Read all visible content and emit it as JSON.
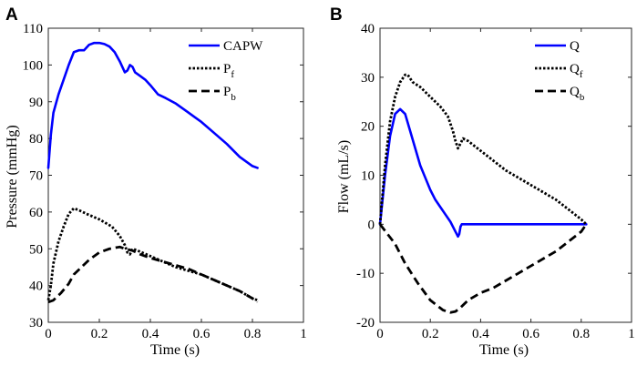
{
  "chart_data": [
    {
      "type": "line",
      "panel_label": "A",
      "xlabel": "Time (s)",
      "ylabel": "Pressure (mmHg)",
      "xlim": [
        0,
        1
      ],
      "ylim": [
        30,
        110
      ],
      "xticks": [
        0,
        0.2,
        0.4,
        0.6,
        0.8,
        1
      ],
      "xtick_labels": [
        "0",
        "0.2",
        "0.4",
        "0.6",
        "0.8",
        "1"
      ],
      "yticks": [
        30,
        40,
        50,
        60,
        70,
        80,
        90,
        100,
        110
      ],
      "ytick_labels": [
        "30",
        "40",
        "50",
        "60",
        "70",
        "80",
        "90",
        "100",
        "110"
      ],
      "legend_position": "top-right",
      "series": [
        {
          "name": "CAPW",
          "legend_main": "CAPW",
          "legend_sub": "",
          "color": "#0000ff",
          "style": "solid",
          "x": [
            0.0,
            0.01,
            0.02,
            0.04,
            0.06,
            0.08,
            0.1,
            0.12,
            0.14,
            0.16,
            0.18,
            0.2,
            0.22,
            0.24,
            0.26,
            0.28,
            0.3,
            0.31,
            0.32,
            0.33,
            0.34,
            0.36,
            0.38,
            0.4,
            0.43,
            0.46,
            0.5,
            0.55,
            0.6,
            0.65,
            0.7,
            0.75,
            0.8,
            0.82
          ],
          "y": [
            72,
            81,
            87,
            92,
            96,
            100,
            103.5,
            104,
            104,
            105.5,
            106,
            106,
            105.7,
            105,
            103.5,
            101,
            98,
            98.5,
            100,
            99.5,
            98,
            97,
            96,
            94.5,
            92,
            91,
            89.5,
            87,
            84.5,
            81.5,
            78.5,
            75,
            72.5,
            72
          ]
        },
        {
          "name": "Pf",
          "legend_main": "P",
          "legend_sub": "f",
          "color": "#000000",
          "style": "dotted",
          "x": [
            0.0,
            0.01,
            0.02,
            0.04,
            0.06,
            0.08,
            0.1,
            0.12,
            0.15,
            0.2,
            0.25,
            0.28,
            0.3,
            0.31,
            0.32,
            0.33,
            0.35,
            0.4,
            0.45,
            0.5,
            0.55,
            0.6,
            0.65,
            0.7,
            0.75,
            0.8,
            0.82
          ],
          "y": [
            36,
            40,
            46,
            52,
            56,
            59.5,
            61,
            60.5,
            59.5,
            58,
            56,
            53.5,
            51,
            49,
            48.5,
            50,
            49.5,
            48,
            46.5,
            45,
            44,
            43,
            41.5,
            40,
            38.5,
            36.5,
            36
          ]
        },
        {
          "name": "Pb",
          "legend_main": "P",
          "legend_sub": "b",
          "color": "#000000",
          "style": "dashed",
          "x": [
            0.0,
            0.02,
            0.05,
            0.08,
            0.1,
            0.13,
            0.16,
            0.2,
            0.24,
            0.28,
            0.3,
            0.33,
            0.36,
            0.4,
            0.45,
            0.5,
            0.55,
            0.6,
            0.65,
            0.7,
            0.75,
            0.8,
            0.82
          ],
          "y": [
            35.5,
            36,
            38,
            40.5,
            43,
            45,
            47,
            49,
            50,
            50.5,
            50,
            49.5,
            48.5,
            47.5,
            46.5,
            45.5,
            44.5,
            43,
            41.5,
            40,
            38.5,
            36.5,
            35.5
          ]
        }
      ]
    },
    {
      "type": "line",
      "panel_label": "B",
      "xlabel": "Time (s)",
      "ylabel": "Flow (mL/s)",
      "xlim": [
        0,
        1
      ],
      "ylim": [
        -20,
        40
      ],
      "xticks": [
        0,
        0.2,
        0.4,
        0.6,
        0.8,
        1
      ],
      "xtick_labels": [
        "0",
        "0.2",
        "0.4",
        "0.6",
        "0.8",
        "1"
      ],
      "yticks": [
        -20,
        -10,
        0,
        10,
        20,
        30,
        40
      ],
      "ytick_labels": [
        "-20",
        "-10",
        "0",
        "10",
        "20",
        "30",
        "40"
      ],
      "legend_position": "top-right",
      "series": [
        {
          "name": "Q",
          "legend_main": "Q",
          "legend_sub": "",
          "color": "#0000ff",
          "style": "solid",
          "x": [
            0.0,
            0.02,
            0.04,
            0.06,
            0.08,
            0.1,
            0.12,
            0.14,
            0.16,
            0.18,
            0.2,
            0.22,
            0.24,
            0.26,
            0.28,
            0.3,
            0.31,
            0.315,
            0.32,
            0.325,
            0.35,
            0.5,
            0.7,
            0.82
          ],
          "y": [
            0,
            10,
            18,
            22.5,
            23.5,
            22.5,
            19,
            15.5,
            12,
            9.5,
            7,
            5,
            3.5,
            2,
            0.5,
            -1.5,
            -2.5,
            -2,
            -0.5,
            0,
            0,
            0,
            0,
            0
          ]
        },
        {
          "name": "Qf",
          "legend_main": "Q",
          "legend_sub": "f",
          "color": "#000000",
          "style": "dotted",
          "x": [
            0.0,
            0.02,
            0.04,
            0.06,
            0.08,
            0.1,
            0.11,
            0.13,
            0.16,
            0.2,
            0.24,
            0.27,
            0.29,
            0.3,
            0.31,
            0.32,
            0.33,
            0.35,
            0.4,
            0.45,
            0.5,
            0.55,
            0.6,
            0.65,
            0.7,
            0.75,
            0.8,
            0.82
          ],
          "y": [
            0,
            12,
            21,
            26,
            29,
            30.5,
            30.5,
            29,
            28,
            26,
            24,
            22,
            19,
            17,
            15.5,
            16.5,
            17.5,
            17,
            15,
            13,
            11,
            9.5,
            8,
            6.5,
            5,
            3,
            1,
            0
          ]
        },
        {
          "name": "Qb",
          "legend_main": "Q",
          "legend_sub": "b",
          "color": "#000000",
          "style": "dashed",
          "x": [
            0.0,
            0.03,
            0.06,
            0.1,
            0.15,
            0.2,
            0.25,
            0.28,
            0.3,
            0.32,
            0.35,
            0.4,
            0.45,
            0.5,
            0.55,
            0.6,
            0.65,
            0.7,
            0.75,
            0.8,
            0.82
          ],
          "y": [
            0,
            -2,
            -4,
            -8,
            -12,
            -15.5,
            -17.5,
            -18,
            -17.8,
            -17,
            -15.5,
            -14,
            -13,
            -11.5,
            -10,
            -8.5,
            -7,
            -5.5,
            -3.5,
            -1.5,
            0
          ]
        }
      ]
    }
  ]
}
